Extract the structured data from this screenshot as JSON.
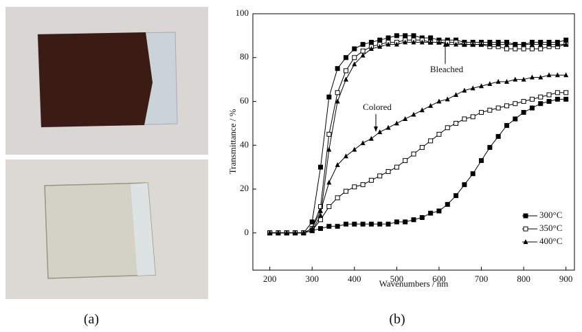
{
  "figure": {
    "captions": [
      "(a)",
      "(b)"
    ]
  },
  "chart_data": {
    "type": "line",
    "x_label": "Wavenumbers / nm",
    "y_label": "Transmittance / %",
    "annotations": [
      "Bleached",
      "Colored"
    ],
    "xlim": [
      160,
      920
    ],
    "ylim": [
      -17,
      100
    ],
    "xticks": [
      200,
      300,
      400,
      500,
      600,
      700,
      800,
      900
    ],
    "yticks": [
      0,
      20,
      40,
      60,
      80,
      100
    ],
    "legend": "lower right",
    "x": [
      200,
      220,
      240,
      260,
      280,
      300,
      320,
      340,
      360,
      380,
      400,
      420,
      440,
      460,
      480,
      500,
      520,
      540,
      560,
      580,
      600,
      620,
      640,
      660,
      680,
      700,
      720,
      740,
      760,
      780,
      800,
      820,
      840,
      860,
      880,
      900
    ],
    "series": [
      {
        "name": "300°C",
        "marker": "filled-square",
        "color": "#000000",
        "bleached": [
          0,
          0,
          0,
          0,
          0,
          5,
          30,
          62,
          75,
          80,
          84,
          86,
          87,
          88,
          89,
          90,
          90,
          90,
          89,
          89,
          88,
          88,
          88,
          87,
          87,
          87,
          87,
          87,
          87,
          86,
          86,
          87,
          87,
          87,
          87,
          88
        ],
        "colored": [
          0,
          0,
          0,
          0,
          0,
          1,
          2,
          3,
          3,
          4,
          4,
          4,
          4,
          4,
          4,
          5,
          5,
          6,
          7,
          9,
          10,
          13,
          17,
          22,
          27,
          33,
          39,
          44,
          49,
          52,
          55,
          57,
          59,
          60,
          61,
          61
        ]
      },
      {
        "name": "350°C",
        "marker": "open-square",
        "color": "#000000",
        "bleached": [
          0,
          0,
          0,
          0,
          0,
          2,
          12,
          45,
          64,
          74,
          80,
          83,
          85,
          86,
          87,
          87,
          88,
          88,
          88,
          87,
          87,
          87,
          87,
          86,
          86,
          86,
          85,
          85,
          84,
          84,
          84,
          84,
          84,
          85,
          85,
          86
        ],
        "colored": [
          0,
          0,
          0,
          0,
          0,
          1,
          6,
          12,
          16,
          19,
          21,
          22,
          24,
          26,
          28,
          30,
          33,
          36,
          39,
          42,
          45,
          48,
          50,
          52,
          53,
          55,
          56,
          57,
          58,
          59,
          60,
          61,
          62,
          63,
          64,
          64
        ]
      },
      {
        "name": "400°C",
        "marker": "filled-triangle",
        "color": "#000000",
        "bleached": [
          0,
          0,
          0,
          0,
          0,
          1,
          8,
          38,
          60,
          70,
          77,
          81,
          84,
          85,
          86,
          86,
          87,
          87,
          87,
          87,
          87,
          86,
          86,
          86,
          86,
          86,
          86,
          86,
          86,
          86,
          86,
          86,
          86,
          86,
          86,
          86
        ],
        "colored": [
          0,
          0,
          0,
          0,
          0,
          2,
          10,
          23,
          31,
          35,
          38,
          41,
          43,
          46,
          48,
          50,
          52,
          54,
          56,
          58,
          60,
          61,
          63,
          65,
          66,
          67,
          68,
          69,
          69,
          70,
          70,
          71,
          71,
          72,
          72,
          72
        ]
      }
    ]
  }
}
